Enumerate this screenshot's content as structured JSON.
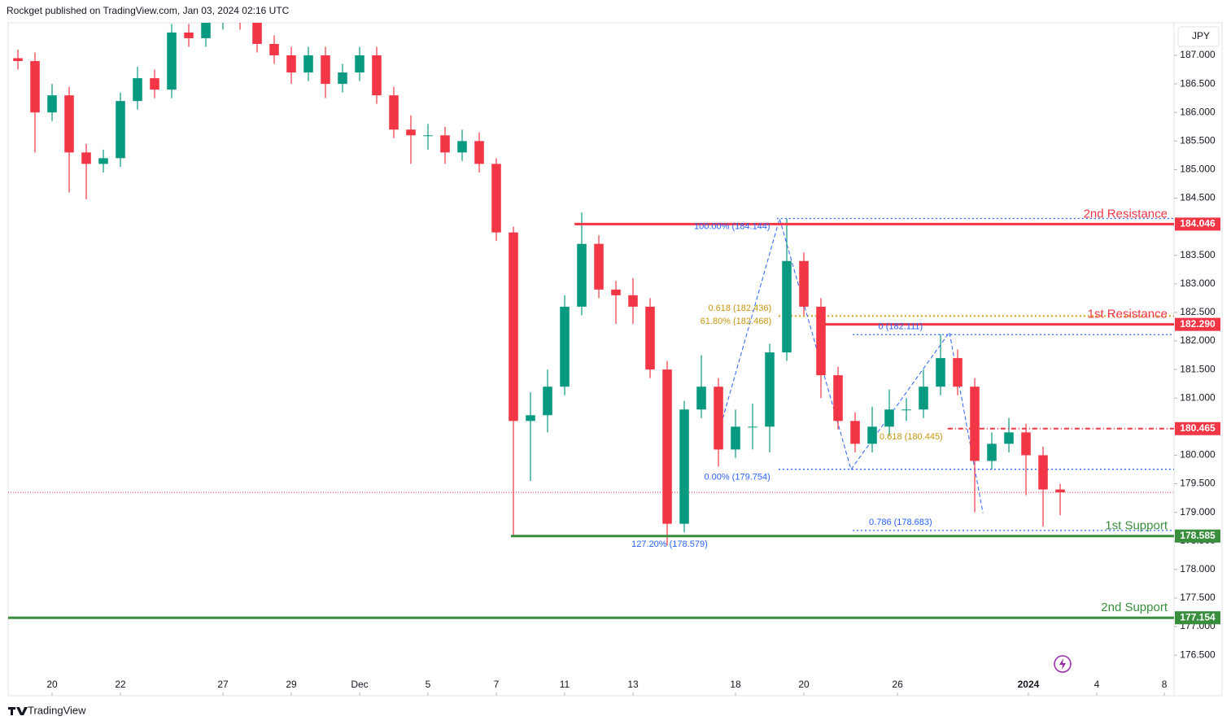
{
  "chart_data": {
    "type": "candlestick",
    "header": "Rockget published on TradingView.com, Jan 03, 2024 02:16 UTC",
    "footer": "TradingView",
    "currency": "JPY",
    "up_color": "#089981",
    "down_color": "#f23645",
    "xlim": [
      -1.286,
      32.833
    ],
    "ylim": [
      175.79,
      187.57
    ],
    "xticks": [
      {
        "value": 0,
        "label": "20"
      },
      {
        "value": 2,
        "label": "22"
      },
      {
        "value": 5,
        "label": "27"
      },
      {
        "value": 7,
        "label": "29"
      },
      {
        "value": 9,
        "label": "Dec"
      },
      {
        "value": 11,
        "label": "5"
      },
      {
        "value": 13,
        "label": "7"
      },
      {
        "value": 15,
        "label": "11"
      },
      {
        "value": 17,
        "label": "13"
      },
      {
        "value": 20,
        "label": "18"
      },
      {
        "value": 22,
        "label": "20"
      },
      {
        "value": 24.74,
        "label": "26"
      },
      {
        "value": 28.57,
        "label": "2024"
      },
      {
        "value": 30.57,
        "label": "4"
      },
      {
        "value": 32.55,
        "label": "8"
      }
    ],
    "yticks": [
      {
        "value": 187,
        "label": "187.000"
      },
      {
        "value": 186.5,
        "label": "186.500"
      },
      {
        "value": 186,
        "label": "186.000"
      },
      {
        "value": 185.5,
        "label": "185.500"
      },
      {
        "value": 185,
        "label": "185.000"
      },
      {
        "value": 184.5,
        "label": "184.500"
      },
      {
        "value": 184,
        "label": "184.000"
      },
      {
        "value": 183.5,
        "label": "183.500"
      },
      {
        "value": 183,
        "label": "183.000"
      },
      {
        "value": 182.5,
        "label": "182.500"
      },
      {
        "value": 182,
        "label": "182.000"
      },
      {
        "value": 181.5,
        "label": "181.500"
      },
      {
        "value": 181,
        "label": "181.000"
      },
      {
        "value": 180.5,
        "label": "180.500"
      },
      {
        "value": 180,
        "label": "180.000"
      },
      {
        "value": 179.5,
        "label": "179.500"
      },
      {
        "value": 179,
        "label": "179.000"
      },
      {
        "value": 178.5,
        "label": "178.500"
      },
      {
        "value": 178,
        "label": "178.000"
      },
      {
        "value": 177.5,
        "label": "177.500"
      },
      {
        "value": 177,
        "label": "177.000"
      },
      {
        "value": 176.5,
        "label": "176.500"
      }
    ],
    "x": [
      -1,
      -0.5,
      0,
      0.5,
      1,
      1.5,
      2,
      2.5,
      3,
      3.5,
      4,
      4.5,
      5,
      5.5,
      6,
      6.5,
      7,
      7.5,
      8,
      8.5,
      9,
      9.5,
      10,
      10.5,
      11,
      11.5,
      12,
      12.5,
      13,
      13.5,
      14,
      14.5,
      15,
      15.5,
      16,
      16.5,
      17,
      17.5,
      18,
      18.5,
      19,
      19.5,
      20,
      20.5,
      21,
      21.5,
      22,
      22.5,
      23,
      23.5,
      24,
      24.5,
      25,
      25.5,
      26,
      26.5,
      27,
      27.5,
      28,
      28.5,
      29,
      29.5
    ],
    "open": [
      186.95,
      186.9,
      186.0,
      186.3,
      185.3,
      185.1,
      185.2,
      186.2,
      186.6,
      186.4,
      187.4,
      187.3,
      187.6,
      187.7,
      187.6,
      187.2,
      187.0,
      186.7,
      187.0,
      186.5,
      186.7,
      187.0,
      186.3,
      185.7,
      185.6,
      185.6,
      185.3,
      185.5,
      185.1,
      183.9,
      180.6,
      180.7,
      181.2,
      182.6,
      183.7,
      182.9,
      182.8,
      182.6,
      181.5,
      178.8,
      180.8,
      181.2,
      180.1,
      180.5,
      180.5,
      181.8,
      183.4,
      182.6,
      181.4,
      180.6,
      180.2,
      180.5,
      180.8,
      180.8,
      181.2,
      181.7,
      181.2,
      179.9,
      180.2,
      180.4,
      180.0,
      179.4
    ],
    "high": [
      187.1,
      187.05,
      186.5,
      186.45,
      185.45,
      185.35,
      186.35,
      186.8,
      186.75,
      187.55,
      187.55,
      187.75,
      187.85,
      187.85,
      187.75,
      187.35,
      187.15,
      187.15,
      187.15,
      186.85,
      187.15,
      187.15,
      186.45,
      185.95,
      185.8,
      185.75,
      185.7,
      185.65,
      185.2,
      184.0,
      181.1,
      181.5,
      182.8,
      184.25,
      183.85,
      183.05,
      183.1,
      182.75,
      181.65,
      180.95,
      181.75,
      181.35,
      180.8,
      180.9,
      181.95,
      184.14,
      183.55,
      182.75,
      181.55,
      180.75,
      180.85,
      181.15,
      181.0,
      181.5,
      182.12,
      181.85,
      181.35,
      180.4,
      180.65,
      180.55,
      180.15,
      179.5
    ],
    "low": [
      186.75,
      185.3,
      185.85,
      184.6,
      184.48,
      184.95,
      185.05,
      186.05,
      186.25,
      186.25,
      187.15,
      187.15,
      187.45,
      187.45,
      187.05,
      186.85,
      186.5,
      186.55,
      186.25,
      186.35,
      186.55,
      186.15,
      185.55,
      185.1,
      185.35,
      185.1,
      185.15,
      184.95,
      183.75,
      178.585,
      179.55,
      180.4,
      181.05,
      182.45,
      182.75,
      182.3,
      182.3,
      181.35,
      178.42,
      178.65,
      180.65,
      179.8,
      179.95,
      180.1,
      180.05,
      181.65,
      182.45,
      181.0,
      180.45,
      180.05,
      180.05,
      180.35,
      180.6,
      180.65,
      181.05,
      181.05,
      179.0,
      179.75,
      180.05,
      179.3,
      178.75,
      178.95
    ],
    "close": [
      186.9,
      186.0,
      186.3,
      185.3,
      185.1,
      185.2,
      186.2,
      186.6,
      186.4,
      187.4,
      187.3,
      187.6,
      187.7,
      187.6,
      187.2,
      187.0,
      186.7,
      187.0,
      186.5,
      186.7,
      187.0,
      186.3,
      185.7,
      185.6,
      185.6,
      185.3,
      185.5,
      185.1,
      183.9,
      180.6,
      180.7,
      181.2,
      182.6,
      183.7,
      182.9,
      182.8,
      182.6,
      181.5,
      178.8,
      180.8,
      181.2,
      180.1,
      180.5,
      180.5,
      181.8,
      183.4,
      182.6,
      181.4,
      180.6,
      180.2,
      180.5,
      180.8,
      180.8,
      181.2,
      181.7,
      181.2,
      179.9,
      180.2,
      180.4,
      180.0,
      179.4,
      179.35
    ],
    "last_price": 179.35,
    "levels": [
      {
        "name": "2nd Resistance",
        "value": 184.046,
        "value_label": "184.046",
        "color": "#f23645",
        "from": 15.29
      },
      {
        "name": "1st Resistance",
        "value": 182.29,
        "value_label": "182.290",
        "color": "#f23645",
        "from": 22.52
      },
      {
        "value": 180.465,
        "value_label": "180.465",
        "color": "#f23645",
        "from": 26.21,
        "dashed": true
      },
      {
        "name": "1st Support",
        "value": 178.585,
        "value_label": "178.585",
        "color": "#388e3c",
        "from": 13.43
      },
      {
        "name": "2nd Support",
        "value": 177.154,
        "value_label": "177.154",
        "color": "#388e3c",
        "from": -1.286
      }
    ],
    "fib_lines": [
      {
        "value": 184.144,
        "from": 21.21,
        "color": "#2962ff"
      },
      {
        "value": 182.436,
        "from": 21.26,
        "color": "#d4a017"
      },
      {
        "value": 182.111,
        "from": 23.43,
        "color": "#2962ff"
      },
      {
        "value": 179.754,
        "from": 21.26,
        "color": "#2962ff"
      },
      {
        "value": 178.683,
        "from": 23.43,
        "color": "#2962ff"
      }
    ],
    "pattern": {
      "color": "#2962ff",
      "x": [
        19.52,
        21.29,
        23.38,
        26.26,
        27.24
      ],
      "values": [
        180.42,
        184.14,
        179.75,
        182.15,
        178.99
      ]
    },
    "annotations": [
      {
        "text": "100.00% (184.144)",
        "x": 19.9,
        "price": 184.0,
        "color": "#2962ff",
        "anchor": "middle"
      },
      {
        "text": "0.618 (182.436)",
        "x": 21.05,
        "price": 182.57,
        "color": "#c8960c",
        "anchor": "end"
      },
      {
        "text": "61.80% (182.468)",
        "x": 21.05,
        "price": 182.34,
        "color": "#c8960c",
        "anchor": "end"
      },
      {
        "text": "0 (182.111)",
        "x": 24.83,
        "price": 182.25,
        "color": "#2962ff",
        "anchor": "middle"
      },
      {
        "text": "0.618 (180.445)",
        "x": 25.14,
        "price": 180.32,
        "color": "#c8960c",
        "anchor": "middle"
      },
      {
        "text": "0.00% (179.754)",
        "x": 20.05,
        "price": 179.61,
        "color": "#2962ff",
        "anchor": "middle"
      },
      {
        "text": "0.786 (178.683)",
        "x": 24.83,
        "price": 178.82,
        "color": "#2962ff",
        "anchor": "middle"
      },
      {
        "text": "127.20% (178.579)",
        "x": 18.07,
        "price": 178.44,
        "color": "#2962ff",
        "anchor": "middle"
      }
    ]
  }
}
